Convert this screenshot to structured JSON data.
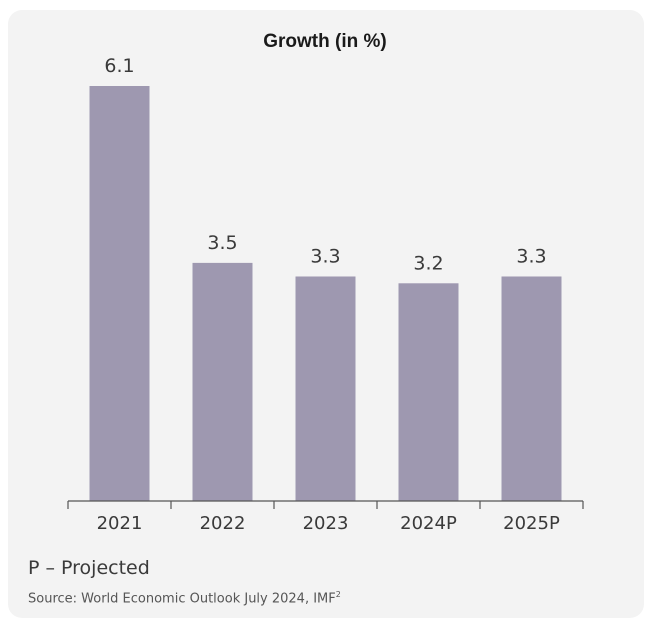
{
  "chart_data": {
    "type": "bar",
    "title": "Growth (in %)",
    "categories": [
      "2021",
      "2022",
      "2023",
      "2024P",
      "2025P"
    ],
    "values": [
      6.1,
      3.5,
      3.3,
      3.2,
      3.3
    ],
    "value_labels": [
      "6.1",
      "3.5",
      "3.3",
      "3.2",
      "3.3"
    ],
    "xlabel": "",
    "ylabel": "",
    "ylim": [
      0,
      6.1
    ],
    "grid": false,
    "legend": "none",
    "bar_color": "#9e98b0",
    "axis_color": "#555555"
  },
  "footnote": {
    "projected_note": "P – Projected",
    "source_text": "Source: World Economic Outlook July 2024, IMF",
    "source_superscript": "2"
  }
}
